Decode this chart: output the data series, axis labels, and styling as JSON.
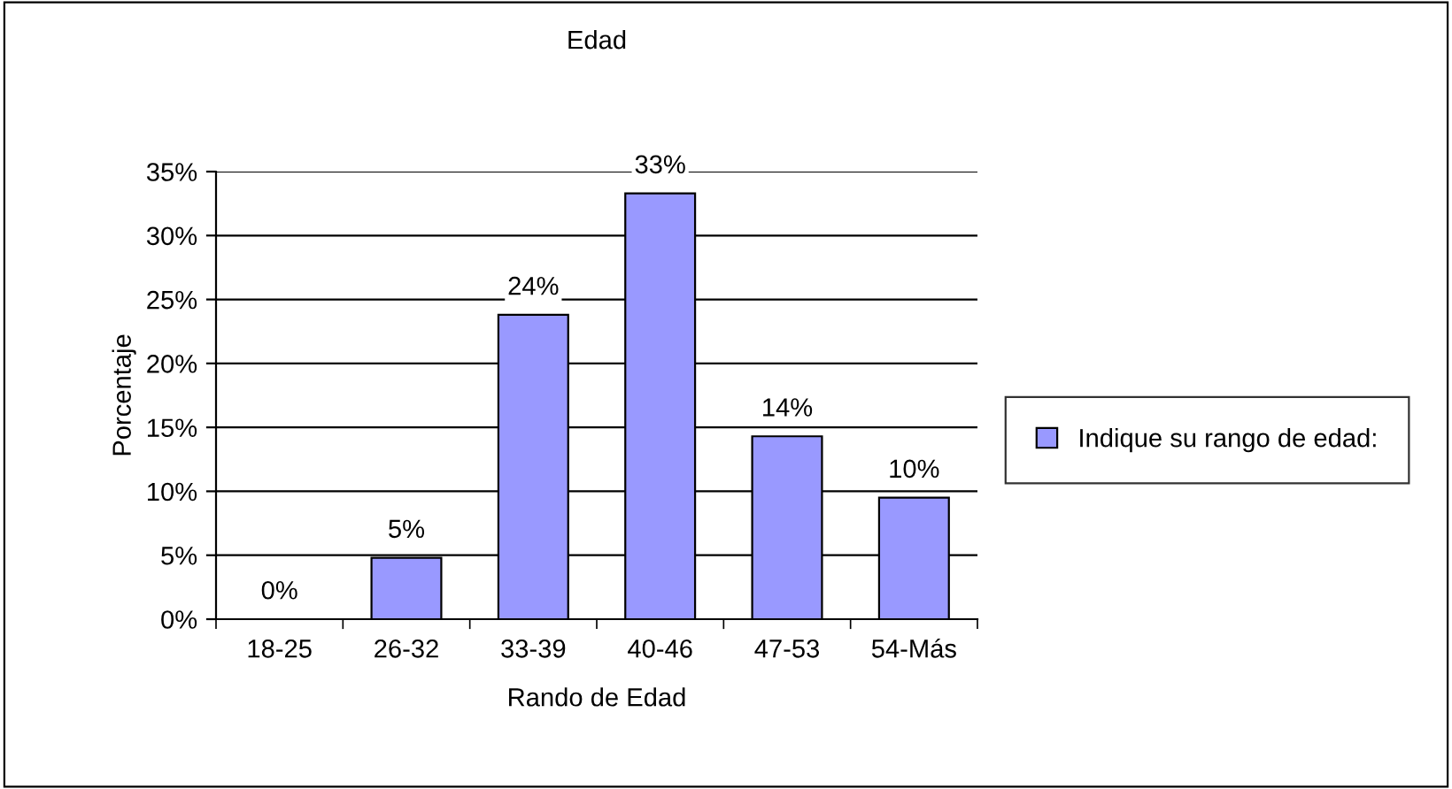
{
  "chart_data": {
    "type": "bar",
    "title": "Edad",
    "xlabel": "Rando de Edad",
    "ylabel": "Porcentaje",
    "categories": [
      "18-25",
      "26-32",
      "33-39",
      "40-46",
      "47-53",
      "54-Más"
    ],
    "series": [
      {
        "name": "Indique su rango de edad:",
        "color": "#9999ff",
        "values": [
          0,
          4.8,
          23.8,
          33.3,
          14.3,
          9.5
        ],
        "value_labels": [
          "0%",
          "5%",
          "24%",
          "33%",
          "14%",
          "10%"
        ]
      }
    ],
    "ylim": [
      0,
      35
    ],
    "yticks": [
      {
        "value": 0,
        "label": "0%"
      },
      {
        "value": 5,
        "label": "5%"
      },
      {
        "value": 10,
        "label": "10%"
      },
      {
        "value": 15,
        "label": "15%"
      },
      {
        "value": 20,
        "label": "20%"
      },
      {
        "value": 25,
        "label": "25%"
      },
      {
        "value": 30,
        "label": "30%"
      },
      {
        "value": 35,
        "label": "35%"
      }
    ],
    "grid": "y",
    "legend": "right"
  }
}
